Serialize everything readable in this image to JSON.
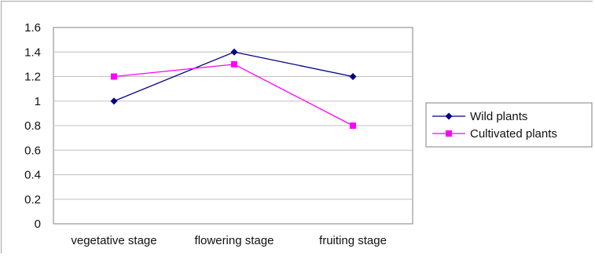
{
  "chart_data": {
    "type": "line",
    "categories": [
      "vegetative stage",
      "flowering stage",
      "fruiting stage"
    ],
    "series": [
      {
        "name": "Wild plants",
        "values": [
          1.0,
          1.4,
          1.2
        ],
        "color": "#000080",
        "marker": "diamond"
      },
      {
        "name": "Cultivated plants",
        "values": [
          1.2,
          1.3,
          0.8
        ],
        "color": "#ff00ff",
        "marker": "square"
      }
    ],
    "title": "",
    "xlabel": "",
    "ylabel": "",
    "ylim": [
      0,
      1.6
    ],
    "yticks": [
      0,
      0.2,
      0.4,
      0.6,
      0.8,
      1,
      1.2,
      1.4,
      1.6
    ],
    "ytick_labels": [
      "0",
      "0.2",
      "0.4",
      "0.6",
      "0.8",
      "1",
      "1.2",
      "1.4",
      "1.6"
    ],
    "grid": "horizontal",
    "legend": "right"
  }
}
